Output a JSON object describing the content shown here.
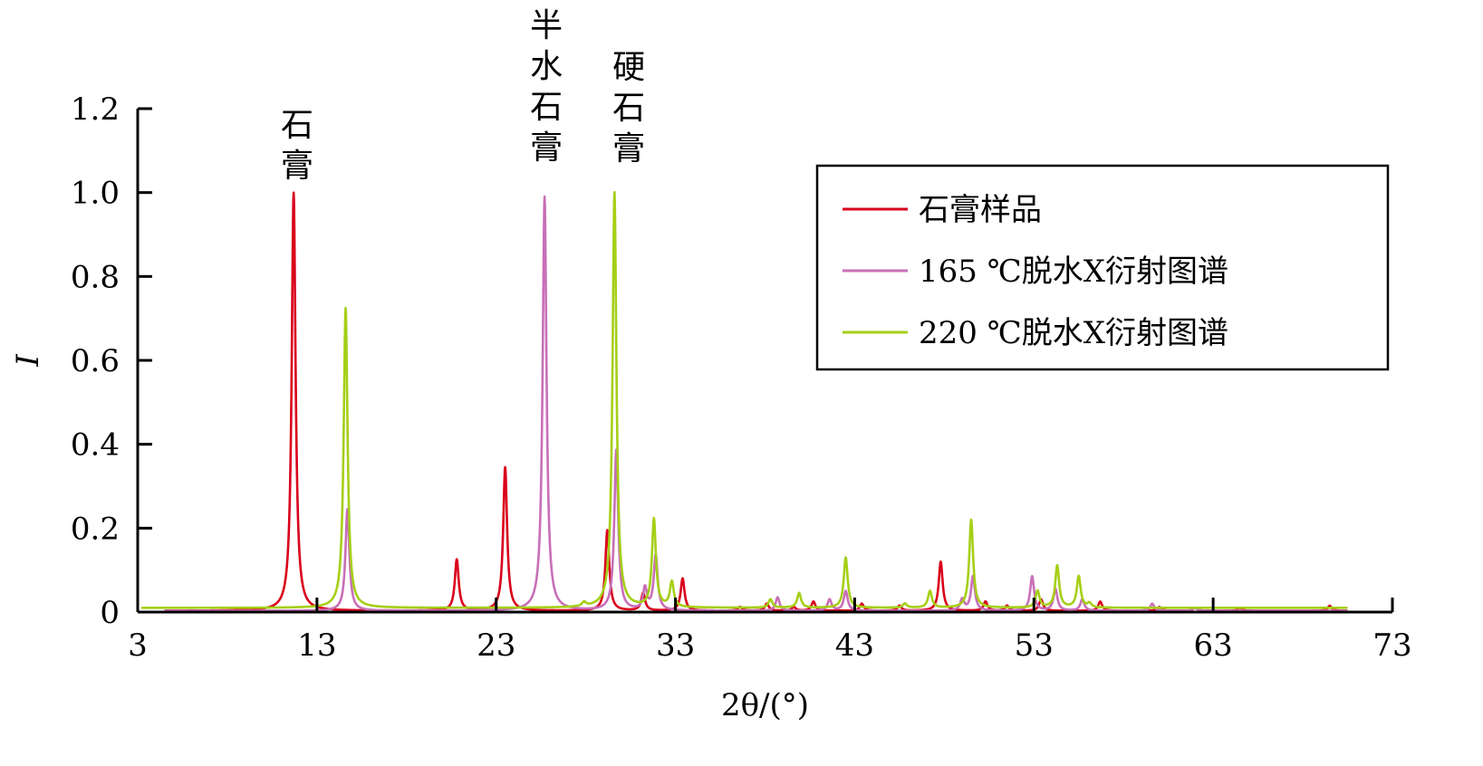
{
  "chart_data": {
    "type": "line",
    "xlabel": "2θ/(°)",
    "ylabel": "I",
    "xlim": [
      3,
      73
    ],
    "ylim": [
      0,
      1.2
    ],
    "x_ticks": [
      3,
      13,
      23,
      33,
      43,
      53,
      63,
      73
    ],
    "x_tick_labels": [
      "3",
      "13",
      "23",
      "33",
      "43",
      "53",
      "63",
      "73"
    ],
    "y_ticks": [
      0,
      0.2,
      0.4,
      0.6,
      0.8,
      1.0,
      1.2
    ],
    "y_tick_labels": [
      "0",
      "0.2",
      "0.4",
      "0.6",
      "0.8",
      "1.0",
      "1.2"
    ],
    "legend_position": "top-right",
    "annotations": [
      {
        "text": "石膏",
        "x": 11.7
      },
      {
        "text": "半水石膏",
        "x": 25.8
      },
      {
        "text": "硬石膏",
        "x": 30.4
      }
    ],
    "series": [
      {
        "name": "石膏样品",
        "color": "#d9001b",
        "x_range": [
          4.5,
          70.5
        ],
        "baseline": 0.003,
        "peaks": [
          {
            "x": 11.7,
            "y": 1.0
          },
          {
            "x": 20.8,
            "y": 0.125
          },
          {
            "x": 23.5,
            "y": 0.345
          },
          {
            "x": 29.2,
            "y": 0.195
          },
          {
            "x": 31.2,
            "y": 0.045
          },
          {
            "x": 33.4,
            "y": 0.08
          },
          {
            "x": 36.6,
            "y": 0.012
          },
          {
            "x": 38.1,
            "y": 0.02
          },
          {
            "x": 39.6,
            "y": 0.012
          },
          {
            "x": 40.7,
            "y": 0.025
          },
          {
            "x": 43.4,
            "y": 0.02
          },
          {
            "x": 45.5,
            "y": 0.015
          },
          {
            "x": 47.8,
            "y": 0.12
          },
          {
            "x": 50.3,
            "y": 0.025
          },
          {
            "x": 51.5,
            "y": 0.015
          },
          {
            "x": 53.4,
            "y": 0.03
          },
          {
            "x": 56.7,
            "y": 0.025
          },
          {
            "x": 60.0,
            "y": 0.012
          },
          {
            "x": 62.0,
            "y": 0.01
          },
          {
            "x": 64.5,
            "y": 0.01
          },
          {
            "x": 69.5,
            "y": 0.015
          }
        ]
      },
      {
        "name": "165 ℃脱水X衍射图谱",
        "color": "#c86fb7",
        "x_range": [
          4.5,
          70.5
        ],
        "baseline": 0.003,
        "peaks": [
          {
            "x": 14.7,
            "y": 0.245
          },
          {
            "x": 25.7,
            "y": 0.99
          },
          {
            "x": 29.7,
            "y": 0.385
          },
          {
            "x": 31.3,
            "y": 0.055
          },
          {
            "x": 31.9,
            "y": 0.135
          },
          {
            "x": 38.7,
            "y": 0.035
          },
          {
            "x": 41.6,
            "y": 0.03
          },
          {
            "x": 42.5,
            "y": 0.05
          },
          {
            "x": 49.0,
            "y": 0.03
          },
          {
            "x": 49.6,
            "y": 0.085
          },
          {
            "x": 52.9,
            "y": 0.085
          },
          {
            "x": 54.2,
            "y": 0.055
          },
          {
            "x": 55.7,
            "y": 0.03
          },
          {
            "x": 59.6,
            "y": 0.02
          },
          {
            "x": 62.0,
            "y": 0.01
          }
        ]
      },
      {
        "name": "220 ℃脱水X衍射图谱",
        "color": "#a5cf17",
        "x_range": [
          3.2,
          70.5
        ],
        "baseline": 0.01,
        "peaks": [
          {
            "x": 14.6,
            "y": 0.725
          },
          {
            "x": 27.9,
            "y": 0.02
          },
          {
            "x": 29.6,
            "y": 1.0
          },
          {
            "x": 31.8,
            "y": 0.22
          },
          {
            "x": 32.8,
            "y": 0.07
          },
          {
            "x": 38.3,
            "y": 0.03
          },
          {
            "x": 39.9,
            "y": 0.045
          },
          {
            "x": 42.5,
            "y": 0.13
          },
          {
            "x": 45.8,
            "y": 0.02
          },
          {
            "x": 47.2,
            "y": 0.05
          },
          {
            "x": 49.5,
            "y": 0.22
          },
          {
            "x": 53.2,
            "y": 0.05
          },
          {
            "x": 54.3,
            "y": 0.11
          },
          {
            "x": 55.5,
            "y": 0.085
          },
          {
            "x": 56.1,
            "y": 0.02
          }
        ]
      }
    ]
  }
}
